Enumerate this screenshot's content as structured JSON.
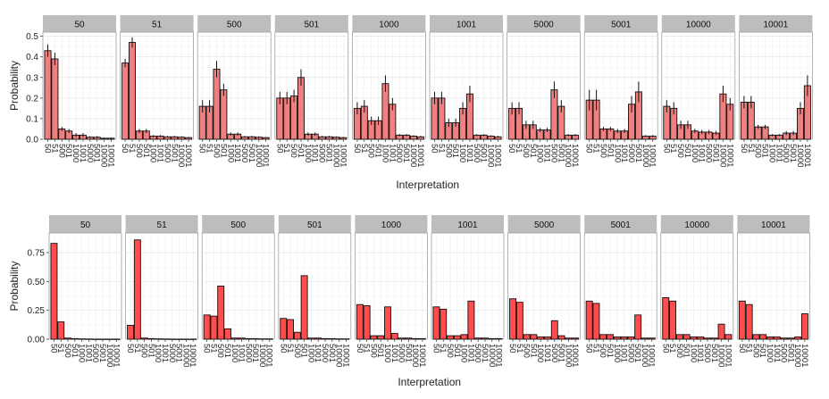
{
  "chart_data": [
    {
      "type": "bar",
      "facet_strip_color": "#bdbdbd",
      "bar_color": "#f08080",
      "xlabel": "Interpretation",
      "ylabel": "Probability",
      "ylim": [
        0,
        0.52
      ],
      "yticks": [
        0.0,
        0.1,
        0.2,
        0.3,
        0.4,
        0.5
      ],
      "ytick_labels": [
        "0.0",
        "0.1",
        "0.2",
        "0.3",
        "0.4",
        "0.5"
      ],
      "grid": true,
      "error_bars": true,
      "categories": [
        "50",
        "51",
        "500",
        "501",
        "1000",
        "1001",
        "5000",
        "5001",
        "10000",
        "10001"
      ],
      "facets": [
        {
          "label": "50",
          "values": [
            0.43,
            0.39,
            0.05,
            0.04,
            0.02,
            0.02,
            0.01,
            0.01,
            0.005,
            0.005
          ],
          "err": [
            0.03,
            0.03,
            0.01,
            0.01,
            0.01,
            0.01,
            0.005,
            0.005,
            0.003,
            0.003
          ]
        },
        {
          "label": "51",
          "values": [
            0.37,
            0.47,
            0.04,
            0.04,
            0.015,
            0.015,
            0.012,
            0.012,
            0.01,
            0.008
          ],
          "err": [
            0.02,
            0.025,
            0.01,
            0.01,
            0.005,
            0.005,
            0.004,
            0.004,
            0.004,
            0.003
          ]
        },
        {
          "label": "500",
          "values": [
            0.16,
            0.16,
            0.34,
            0.24,
            0.025,
            0.025,
            0.012,
            0.012,
            0.01,
            0.008
          ],
          "err": [
            0.03,
            0.03,
            0.04,
            0.03,
            0.008,
            0.008,
            0.004,
            0.004,
            0.004,
            0.003
          ]
        },
        {
          "label": "501",
          "values": [
            0.2,
            0.2,
            0.21,
            0.3,
            0.025,
            0.025,
            0.012,
            0.012,
            0.01,
            0.008
          ],
          "err": [
            0.03,
            0.03,
            0.03,
            0.04,
            0.008,
            0.008,
            0.004,
            0.004,
            0.004,
            0.003
          ]
        },
        {
          "label": "1000",
          "values": [
            0.15,
            0.16,
            0.09,
            0.09,
            0.27,
            0.17,
            0.02,
            0.02,
            0.015,
            0.012
          ],
          "err": [
            0.03,
            0.03,
            0.02,
            0.02,
            0.04,
            0.03,
            0.005,
            0.005,
            0.004,
            0.004
          ]
        },
        {
          "label": "1001",
          "values": [
            0.2,
            0.2,
            0.08,
            0.08,
            0.15,
            0.22,
            0.02,
            0.02,
            0.015,
            0.012
          ],
          "err": [
            0.03,
            0.03,
            0.02,
            0.02,
            0.03,
            0.04,
            0.005,
            0.005,
            0.004,
            0.004
          ]
        },
        {
          "label": "5000",
          "values": [
            0.15,
            0.15,
            0.07,
            0.07,
            0.045,
            0.045,
            0.24,
            0.16,
            0.02,
            0.02
          ],
          "err": [
            0.03,
            0.03,
            0.02,
            0.02,
            0.01,
            0.01,
            0.04,
            0.03,
            0.005,
            0.005
          ]
        },
        {
          "label": "5001",
          "values": [
            0.19,
            0.19,
            0.05,
            0.05,
            0.04,
            0.04,
            0.17,
            0.23,
            0.015,
            0.015
          ],
          "err": [
            0.05,
            0.05,
            0.01,
            0.01,
            0.01,
            0.01,
            0.04,
            0.05,
            0.005,
            0.005
          ]
        },
        {
          "label": "10000",
          "values": [
            0.16,
            0.15,
            0.07,
            0.07,
            0.04,
            0.035,
            0.035,
            0.03,
            0.22,
            0.17
          ],
          "err": [
            0.03,
            0.03,
            0.02,
            0.02,
            0.01,
            0.01,
            0.01,
            0.01,
            0.04,
            0.03
          ]
        },
        {
          "label": "10001",
          "values": [
            0.18,
            0.18,
            0.06,
            0.06,
            0.02,
            0.02,
            0.03,
            0.03,
            0.15,
            0.26
          ],
          "err": [
            0.03,
            0.03,
            0.01,
            0.01,
            0.005,
            0.005,
            0.01,
            0.01,
            0.03,
            0.05
          ]
        }
      ]
    },
    {
      "type": "bar",
      "facet_strip_color": "#bdbdbd",
      "bar_color": "#ff4d4d",
      "xlabel": "Interpretation",
      "ylabel": "Probability",
      "ylim": [
        0,
        0.92
      ],
      "yticks": [
        0.0,
        0.25,
        0.5,
        0.75
      ],
      "ytick_labels": [
        "0.00",
        "0.25",
        "0.50",
        "0.75"
      ],
      "grid": true,
      "error_bars": false,
      "categories": [
        "50",
        "51",
        "500",
        "501",
        "1000",
        "1001",
        "5000",
        "5001",
        "10000",
        "10001"
      ],
      "facets": [
        {
          "label": "50",
          "values": [
            0.83,
            0.15,
            0.01,
            0.005,
            0.003,
            0.002,
            0.001,
            0.001,
            0.001,
            0.001
          ]
        },
        {
          "label": "51",
          "values": [
            0.12,
            0.86,
            0.01,
            0.005,
            0.003,
            0.002,
            0.001,
            0.001,
            0.001,
            0.001
          ]
        },
        {
          "label": "500",
          "values": [
            0.21,
            0.2,
            0.46,
            0.09,
            0.01,
            0.01,
            0.005,
            0.005,
            0.003,
            0.003
          ]
        },
        {
          "label": "501",
          "values": [
            0.18,
            0.17,
            0.06,
            0.55,
            0.01,
            0.01,
            0.005,
            0.005,
            0.003,
            0.003
          ]
        },
        {
          "label": "1000",
          "values": [
            0.3,
            0.29,
            0.03,
            0.03,
            0.28,
            0.05,
            0.01,
            0.01,
            0.005,
            0.005
          ]
        },
        {
          "label": "1001",
          "values": [
            0.28,
            0.26,
            0.03,
            0.03,
            0.04,
            0.33,
            0.01,
            0.01,
            0.005,
            0.005
          ]
        },
        {
          "label": "5000",
          "values": [
            0.35,
            0.32,
            0.04,
            0.04,
            0.02,
            0.02,
            0.16,
            0.03,
            0.01,
            0.01
          ]
        },
        {
          "label": "5001",
          "values": [
            0.33,
            0.31,
            0.04,
            0.04,
            0.02,
            0.02,
            0.02,
            0.21,
            0.01,
            0.01
          ]
        },
        {
          "label": "10000",
          "values": [
            0.36,
            0.33,
            0.04,
            0.04,
            0.02,
            0.02,
            0.01,
            0.01,
            0.13,
            0.04
          ]
        },
        {
          "label": "10001",
          "values": [
            0.33,
            0.3,
            0.04,
            0.04,
            0.02,
            0.02,
            0.01,
            0.01,
            0.02,
            0.22
          ]
        }
      ]
    }
  ]
}
